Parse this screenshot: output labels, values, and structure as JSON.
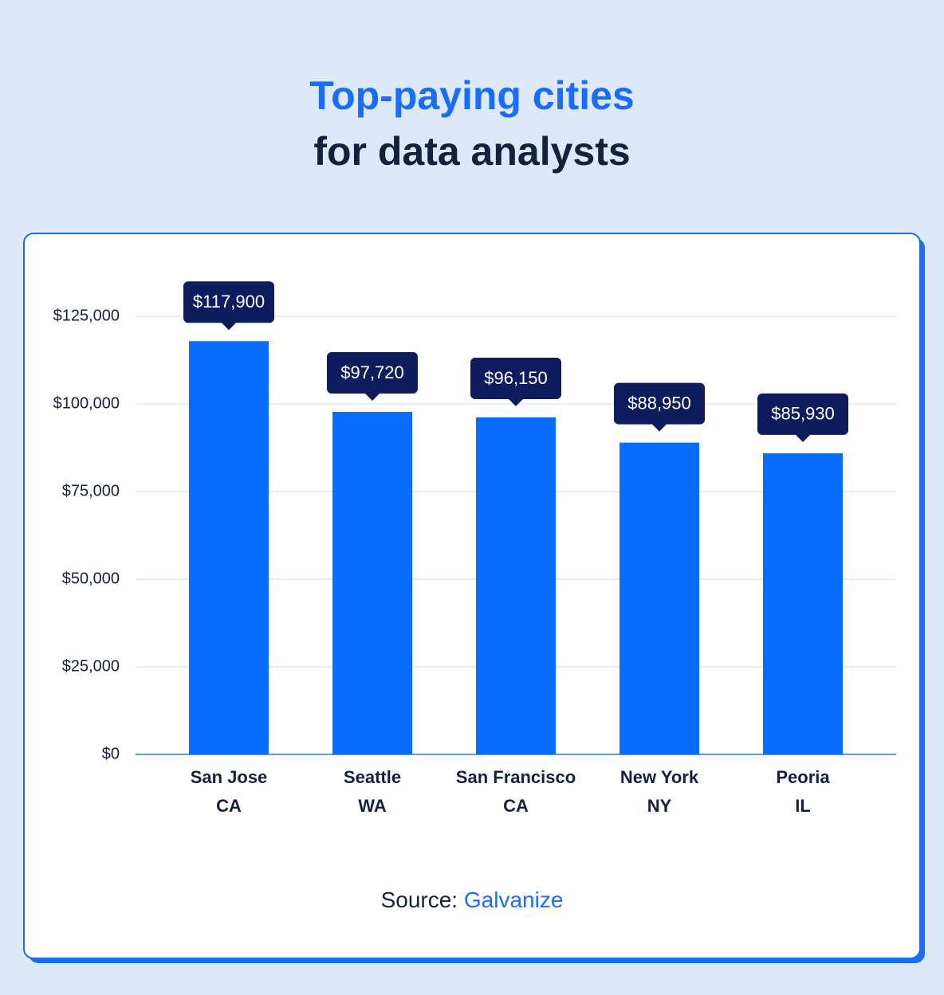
{
  "chart_data": {
    "type": "bar",
    "title": "Top-paying cities",
    "subtitle": "for data analysts",
    "categories": [
      [
        "San Jose",
        "CA"
      ],
      [
        "Seattle",
        "WA"
      ],
      [
        "San Francisco",
        "CA"
      ],
      [
        "New York",
        "NY"
      ],
      [
        "Peoria",
        "IL"
      ]
    ],
    "values": [
      117900,
      97720,
      96150,
      88950,
      85930
    ],
    "value_labels": [
      "$117,900",
      "$97,720",
      "$96,150",
      "$88,950",
      "$85,930"
    ],
    "color": "#0a6cff",
    "ylim": [
      0,
      125000
    ],
    "yticks": [
      {
        "value": 0,
        "label": "$0"
      },
      {
        "value": 25000,
        "label": "$25,000"
      },
      {
        "value": 50000,
        "label": "$50,000"
      },
      {
        "value": 75000,
        "label": "$75,000"
      },
      {
        "value": 100000,
        "label": "$100,000"
      },
      {
        "value": 125000,
        "label": "$125,000"
      }
    ],
    "grid": true,
    "source_label": "Source:",
    "source": "Galvanize"
  }
}
